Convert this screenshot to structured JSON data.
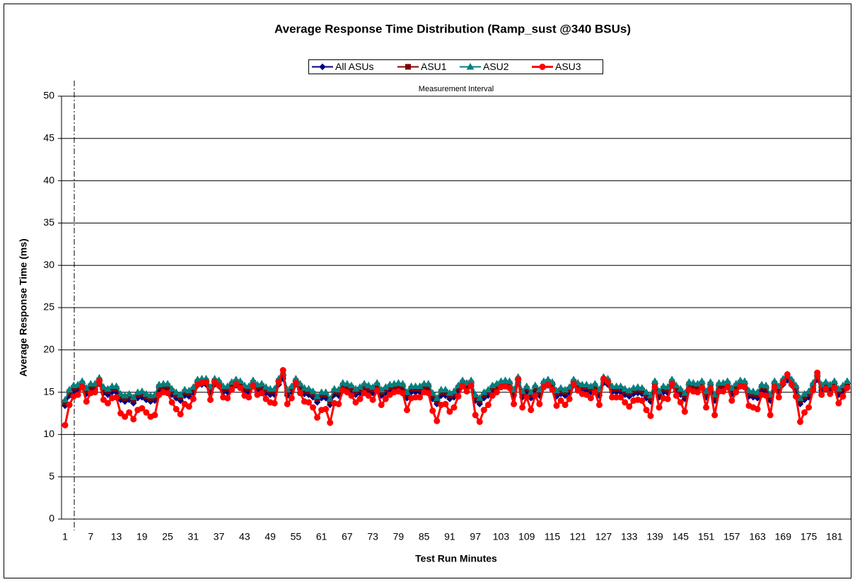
{
  "chart_data": {
    "type": "line",
    "title": "Average Response Time Distribution (Ramp_sust @340 BSUs)",
    "x_label": "Test Run Minutes",
    "y_label": "Average Response Time (ms)",
    "annotation": "Measurement Interval",
    "ylim": [
      0,
      50
    ],
    "yticks": [
      0,
      5,
      10,
      15,
      20,
      25,
      30,
      35,
      40,
      45,
      50
    ],
    "grid": true,
    "categories": [
      "1",
      null,
      null,
      null,
      null,
      null,
      "7",
      null,
      null,
      null,
      null,
      null,
      "13",
      null,
      null,
      null,
      null,
      null,
      "19",
      null,
      null,
      null,
      null,
      null,
      "25",
      null,
      null,
      null,
      null,
      null,
      "31",
      null,
      null,
      null,
      null,
      null,
      "37",
      null,
      null,
      null,
      null,
      null,
      "43",
      null,
      null,
      null,
      null,
      null,
      "49",
      null,
      null,
      null,
      null,
      null,
      "55",
      null,
      null,
      null,
      null,
      null,
      "61",
      null,
      null,
      null,
      null,
      null,
      "67",
      null,
      null,
      null,
      null,
      null,
      "73",
      null,
      null,
      null,
      null,
      null,
      "79",
      null,
      null,
      null,
      null,
      null,
      "85",
      null,
      null,
      null,
      null,
      null,
      "91",
      null,
      null,
      null,
      null,
      null,
      "97",
      null,
      null,
      null,
      null,
      null,
      "103",
      null,
      null,
      null,
      null,
      null,
      "109",
      null,
      null,
      null,
      null,
      null,
      "115",
      null,
      null,
      null,
      null,
      null,
      "121",
      null,
      null,
      null,
      null,
      null,
      "127",
      null,
      null,
      null,
      null,
      null,
      "133",
      null,
      null,
      null,
      null,
      null,
      "139",
      null,
      null,
      null,
      null,
      null,
      "145",
      null,
      null,
      null,
      null,
      null,
      "151",
      null,
      null,
      null,
      null,
      null,
      "157",
      null,
      null,
      null,
      null,
      null,
      "163",
      null,
      null,
      null,
      null,
      null,
      "169",
      null,
      null,
      null,
      null,
      null,
      "175",
      null,
      null,
      null,
      null,
      null,
      "181",
      null,
      null,
      null
    ],
    "series": [
      {
        "name": "All ASUs",
        "color": "#000080",
        "marker": "diamond",
        "values": [
          13.4,
          14.6,
          15.1,
          15.2,
          15.6,
          14.8,
          15.3,
          15.3,
          16.0,
          14.9,
          14.7,
          15.0,
          15.0,
          14.1,
          13.9,
          14.1,
          13.7,
          14.3,
          14.4,
          14.1,
          13.9,
          14.0,
          15.2,
          15.3,
          15.3,
          14.7,
          14.3,
          14.0,
          14.6,
          14.5,
          14.9,
          15.8,
          15.9,
          15.9,
          14.9,
          15.9,
          15.7,
          15.0,
          15.0,
          15.5,
          15.8,
          15.6,
          15.1,
          15.0,
          15.7,
          15.2,
          15.3,
          14.9,
          14.7,
          14.7,
          15.9,
          16.6,
          14.6,
          15.0,
          15.9,
          15.3,
          14.8,
          14.7,
          14.4,
          13.8,
          14.3,
          14.3,
          13.5,
          14.7,
          14.6,
          15.4,
          15.3,
          15.1,
          14.7,
          14.9,
          15.3,
          15.1,
          14.9,
          15.4,
          14.6,
          14.9,
          15.2,
          15.3,
          15.4,
          15.3,
          14.3,
          15.0,
          15.0,
          15.0,
          15.3,
          15.3,
          14.2,
          13.6,
          14.6,
          14.6,
          14.2,
          14.4,
          15.1,
          15.7,
          15.4,
          15.7,
          14.0,
          13.6,
          14.3,
          14.6,
          15.1,
          15.3,
          15.6,
          15.7,
          15.6,
          14.6,
          16.1,
          14.4,
          15.0,
          14.3,
          15.1,
          14.6,
          15.6,
          15.8,
          15.5,
          14.5,
          14.8,
          14.6,
          14.9,
          15.8,
          15.4,
          15.2,
          15.2,
          15.0,
          15.3,
          14.6,
          16.1,
          15.9,
          15.0,
          15.0,
          15.0,
          14.7,
          14.5,
          14.8,
          14.9,
          14.8,
          14.3,
          13.9,
          15.6,
          14.4,
          15.0,
          14.9,
          15.8,
          15.1,
          14.7,
          14.2,
          15.5,
          15.4,
          15.3,
          15.6,
          14.4,
          15.5,
          14.0,
          15.4,
          15.4,
          15.6,
          14.8,
          15.3,
          15.7,
          15.6,
          14.5,
          14.4,
          14.3,
          15.2,
          15.1,
          14.0,
          15.6,
          15.0,
          15.9,
          16.4,
          15.8,
          15.1,
          13.6,
          14.1,
          14.4,
          15.4,
          16.5,
          15.2,
          15.5,
          15.2,
          15.6,
          14.7,
          15.1,
          15.6
        ]
      },
      {
        "name": "ASU1",
        "color": "#800000",
        "marker": "square",
        "values": [
          13.8,
          15.0,
          15.5,
          15.6,
          16.0,
          15.2,
          15.7,
          15.7,
          16.4,
          15.3,
          15.1,
          15.4,
          15.4,
          14.5,
          14.3,
          14.5,
          14.1,
          14.7,
          14.8,
          14.5,
          14.3,
          14.4,
          15.6,
          15.7,
          15.7,
          15.1,
          14.7,
          14.4,
          15.0,
          14.9,
          15.3,
          16.2,
          16.3,
          16.3,
          15.3,
          16.3,
          16.1,
          15.4,
          15.4,
          15.9,
          16.2,
          16.0,
          15.5,
          15.4,
          16.1,
          15.6,
          15.7,
          15.3,
          15.1,
          15.1,
          16.3,
          17.0,
          15.0,
          15.4,
          16.3,
          15.7,
          15.2,
          15.1,
          14.8,
          14.2,
          14.7,
          14.7,
          13.9,
          15.1,
          15.0,
          15.8,
          15.7,
          15.5,
          15.1,
          15.3,
          15.7,
          15.5,
          15.3,
          15.8,
          15.0,
          15.3,
          15.6,
          15.7,
          15.8,
          15.7,
          14.7,
          15.4,
          15.4,
          15.4,
          15.7,
          15.7,
          14.6,
          14.0,
          15.0,
          15.0,
          14.6,
          14.8,
          15.5,
          16.1,
          15.8,
          16.1,
          14.4,
          14.0,
          14.7,
          15.0,
          15.5,
          15.7,
          16.0,
          16.1,
          16.0,
          15.0,
          16.5,
          14.8,
          15.4,
          14.7,
          15.5,
          15.0,
          16.0,
          16.2,
          15.9,
          14.9,
          15.2,
          15.0,
          15.3,
          16.2,
          15.8,
          15.6,
          15.6,
          15.4,
          15.7,
          15.0,
          16.5,
          16.3,
          15.4,
          15.4,
          15.4,
          15.1,
          14.9,
          15.2,
          15.3,
          15.2,
          14.7,
          14.3,
          16.0,
          14.8,
          15.4,
          15.3,
          16.2,
          15.5,
          15.1,
          14.6,
          15.9,
          15.8,
          15.7,
          16.0,
          14.8,
          15.9,
          14.4,
          15.8,
          15.8,
          16.0,
          15.2,
          15.7,
          16.1,
          16.0,
          14.9,
          14.8,
          14.7,
          15.6,
          15.5,
          14.4,
          16.0,
          15.4,
          16.3,
          16.8,
          16.2,
          15.5,
          14.0,
          14.5,
          14.8,
          15.8,
          16.9,
          15.6,
          15.9,
          15.6,
          16.0,
          15.1,
          15.5,
          16.0
        ]
      },
      {
        "name": "ASU2",
        "color": "#008080",
        "marker": "triangle",
        "values": [
          14.1,
          15.3,
          15.8,
          15.9,
          16.3,
          15.5,
          16.0,
          16.0,
          16.7,
          15.6,
          15.4,
          15.7,
          15.7,
          14.8,
          14.6,
          14.8,
          14.4,
          15.0,
          15.1,
          14.8,
          14.6,
          14.7,
          15.9,
          16.0,
          16.0,
          15.4,
          15.0,
          14.7,
          15.3,
          15.2,
          15.6,
          16.5,
          16.6,
          16.6,
          15.6,
          16.6,
          16.4,
          15.7,
          15.7,
          16.2,
          16.5,
          16.3,
          15.8,
          15.7,
          16.4,
          15.9,
          16.0,
          15.6,
          15.4,
          15.4,
          16.6,
          17.3,
          15.3,
          15.7,
          16.6,
          16.0,
          15.5,
          15.4,
          15.1,
          14.5,
          15.0,
          15.0,
          14.2,
          15.4,
          15.3,
          16.1,
          16.0,
          15.8,
          15.4,
          15.6,
          16.0,
          15.8,
          15.6,
          16.1,
          15.3,
          15.6,
          15.9,
          16.0,
          16.1,
          16.0,
          15.0,
          15.7,
          15.7,
          15.7,
          16.0,
          16.0,
          14.9,
          14.3,
          15.3,
          15.3,
          14.9,
          15.1,
          15.8,
          16.4,
          16.1,
          16.4,
          14.7,
          14.3,
          15.0,
          15.3,
          15.8,
          16.0,
          16.3,
          16.4,
          16.3,
          15.3,
          16.8,
          15.1,
          15.7,
          15.0,
          15.8,
          15.3,
          16.3,
          16.5,
          16.2,
          15.2,
          15.5,
          15.3,
          15.6,
          16.5,
          16.1,
          15.9,
          15.9,
          15.7,
          16.0,
          15.3,
          16.8,
          16.6,
          15.7,
          15.7,
          15.7,
          15.4,
          15.2,
          15.5,
          15.6,
          15.5,
          15.0,
          14.6,
          16.3,
          15.1,
          15.7,
          15.6,
          16.5,
          15.8,
          15.4,
          14.9,
          16.2,
          16.1,
          16.0,
          16.3,
          15.1,
          16.2,
          14.7,
          16.1,
          16.1,
          16.3,
          15.5,
          16.0,
          16.4,
          16.3,
          15.2,
          15.1,
          15.0,
          15.9,
          15.8,
          14.7,
          16.3,
          15.7,
          16.6,
          17.1,
          16.5,
          15.8,
          14.3,
          14.8,
          15.1,
          16.1,
          17.2,
          15.9,
          16.2,
          15.9,
          16.3,
          15.4,
          15.8,
          16.3
        ]
      },
      {
        "name": "ASU3",
        "color": "#ff0000",
        "marker": "circle",
        "values": [
          11.1,
          13.5,
          14.5,
          14.7,
          15.6,
          13.9,
          14.9,
          15.0,
          16.3,
          14.1,
          13.7,
          14.3,
          14.4,
          12.5,
          12.1,
          12.6,
          11.8,
          12.9,
          13.1,
          12.6,
          12.1,
          12.3,
          14.7,
          15.0,
          14.9,
          13.8,
          13.0,
          12.4,
          13.6,
          13.3,
          14.2,
          15.9,
          16.1,
          16.2,
          14.1,
          16.2,
          15.8,
          14.4,
          14.3,
          15.3,
          16.0,
          15.5,
          14.6,
          14.4,
          15.8,
          14.7,
          14.9,
          14.2,
          13.8,
          13.7,
          16.2,
          17.6,
          13.6,
          14.3,
          16.1,
          14.9,
          13.9,
          13.8,
          13.2,
          12.0,
          12.9,
          13.0,
          11.4,
          13.7,
          13.6,
          15.2,
          15.0,
          14.6,
          13.8,
          14.2,
          14.9,
          14.6,
          14.1,
          15.2,
          13.5,
          14.2,
          14.7,
          15.0,
          15.1,
          14.9,
          12.9,
          14.3,
          14.4,
          14.4,
          15.0,
          14.9,
          12.8,
          11.6,
          13.5,
          13.6,
          12.7,
          13.2,
          14.5,
          15.7,
          15.1,
          15.8,
          12.3,
          11.5,
          12.9,
          13.5,
          14.6,
          15.0,
          15.6,
          15.7,
          15.5,
          13.6,
          16.5,
          13.2,
          14.4,
          12.9,
          14.6,
          13.6,
          15.6,
          15.9,
          15.3,
          13.4,
          14.0,
          13.5,
          14.2,
          16.0,
          15.2,
          14.8,
          14.7,
          14.3,
          15.0,
          13.5,
          16.6,
          16.2,
          14.4,
          14.4,
          14.4,
          13.8,
          13.3,
          14.0,
          14.1,
          14.0,
          12.9,
          12.2,
          15.6,
          13.2,
          14.3,
          14.2,
          16.0,
          14.6,
          13.8,
          12.7,
          15.3,
          15.1,
          15.0,
          15.5,
          13.2,
          15.4,
          12.3,
          15.1,
          15.1,
          15.6,
          14.0,
          15.0,
          15.7,
          15.6,
          13.4,
          13.2,
          13.0,
          14.7,
          14.6,
          12.3,
          15.6,
          14.4,
          16.1,
          17.1,
          15.9,
          14.5,
          11.5,
          12.6,
          13.2,
          15.2,
          17.3,
          14.7,
          15.4,
          14.8,
          15.5,
          13.7,
          14.5,
          15.5
        ]
      }
    ]
  }
}
